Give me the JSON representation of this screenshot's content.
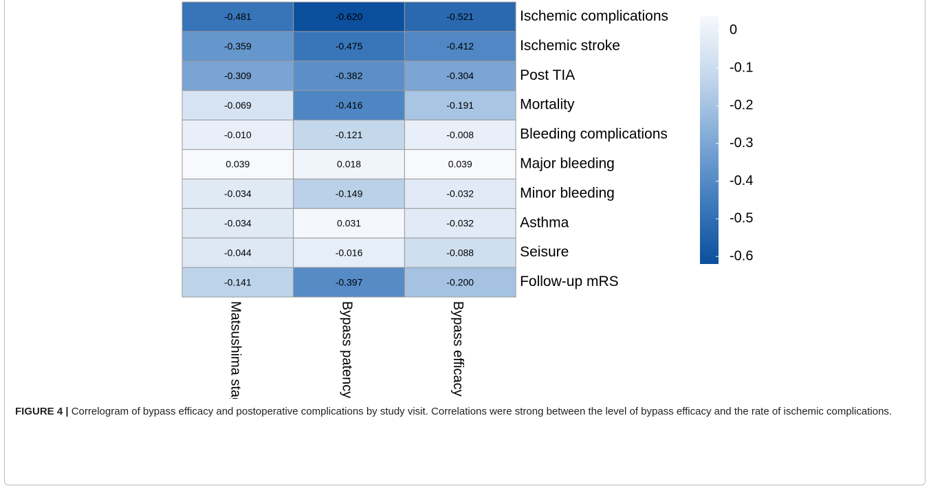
{
  "chart_data": {
    "type": "heatmap",
    "x_categories": [
      "Matsushima stage",
      "Bypass patency",
      "Bypass efficacy"
    ],
    "y_categories": [
      "Ischemic complications",
      "Ischemic stroke",
      "Post TIA",
      "Mortality",
      "Bleeding complications",
      "Major bleeding",
      "Minor bleeding",
      "Asthma",
      "Seisure",
      "Follow-up mRS"
    ],
    "values": [
      [
        -0.481,
        -0.62,
        -0.521
      ],
      [
        -0.359,
        -0.475,
        -0.412
      ],
      [
        -0.309,
        -0.382,
        -0.304
      ],
      [
        -0.069,
        -0.416,
        -0.191
      ],
      [
        -0.01,
        -0.121,
        -0.008
      ],
      [
        0.039,
        0.018,
        0.039
      ],
      [
        -0.034,
        -0.149,
        -0.032
      ],
      [
        -0.034,
        0.031,
        -0.032
      ],
      [
        -0.044,
        -0.016,
        -0.088
      ],
      [
        -0.141,
        -0.397,
        -0.2
      ]
    ],
    "value_labels": [
      [
        "-0.481",
        "-0.620",
        "-0.521"
      ],
      [
        "-0.359",
        "-0.475",
        "-0.412"
      ],
      [
        "-0.309",
        "-0.382",
        "-0.304"
      ],
      [
        "-0.069",
        "-0.416",
        "-0.191"
      ],
      [
        "-0.010",
        "-0.121",
        "-0.008"
      ],
      [
        "0.039",
        "0.018",
        "0.039"
      ],
      [
        "-0.034",
        "-0.149",
        "-0.032"
      ],
      [
        "-0.034",
        "0.031",
        "-0.032"
      ],
      [
        "-0.044",
        "-0.016",
        "-0.088"
      ],
      [
        "-0.141",
        "-0.397",
        "-0.200"
      ]
    ],
    "zlim": [
      -0.62,
      0.039
    ],
    "zticks": [
      0,
      -0.1,
      -0.2,
      -0.3,
      -0.4,
      -0.5,
      -0.6
    ],
    "colormap": [
      "#0b4f9d",
      "#3f7bbd",
      "#80a9d6",
      "#c3d7ec",
      "#f7f9fd"
    ],
    "caption_label": "FIGURE 4 |",
    "caption": "Correlogram of bypass efficacy and postoperative complications by study visit. Correlations were strong between the level of bypass efficacy and the rate of ischemic complications."
  }
}
